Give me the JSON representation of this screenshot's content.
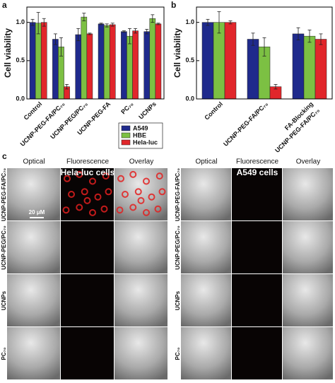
{
  "panels": {
    "a": "a",
    "b": "b",
    "c": "c"
  },
  "chart_data": [
    {
      "type": "bar",
      "ylabel": "Cell viability",
      "categories": [
        "Control",
        "UCNP-PEG-FA/PC₇₀",
        "UCNP-PEG/PC₇₀",
        "UCNP-PEG-FA",
        "PC₇₀",
        "UCNPs"
      ],
      "ylim": [
        0,
        1.2
      ],
      "yticks": [
        {
          "value": 0,
          "label": "0.0"
        },
        {
          "value": 0.5,
          "label": "0.5"
        },
        {
          "value": 1,
          "label": "1.0"
        }
      ],
      "legend": "lower right",
      "series": [
        {
          "name": "A549",
          "color": "#1f2a8c",
          "values": [
            1.0,
            0.78,
            0.84,
            0.98,
            0.88,
            0.88
          ],
          "errors": [
            0.04,
            0.07,
            0.08,
            0.01,
            0.01,
            0.03
          ]
        },
        {
          "name": "HBE",
          "color": "#7cc043",
          "values": [
            0.99,
            0.68,
            1.07,
            0.96,
            0.82,
            1.05
          ],
          "errors": [
            0.14,
            0.12,
            0.05,
            0.02,
            0.1,
            0.05
          ]
        },
        {
          "name": "Hela-luc",
          "color": "#e1262b",
          "values": [
            1.0,
            0.16,
            0.85,
            0.97,
            0.89,
            0.98
          ],
          "errors": [
            0.05,
            0.03,
            0.01,
            0.02,
            0.03,
            0.01
          ]
        }
      ]
    },
    {
      "type": "bar",
      "ylabel": "Cell viability",
      "categories": [
        "Control",
        "UCNP-PEG-FA/PC₇₀",
        [
          "FA-Blocking",
          "UCNP-PEG-FA/PC₇₀"
        ]
      ],
      "ylim": [
        0,
        1.2
      ],
      "yticks": [
        {
          "value": 0,
          "label": "0.0"
        },
        {
          "value": 0.5,
          "label": "0.5"
        },
        {
          "value": 1,
          "label": "1.0"
        }
      ],
      "series": [
        {
          "color": "#1f2a8c",
          "values": [
            1.0,
            0.78,
            0.85
          ],
          "errors": [
            0.04,
            0.08,
            0.08
          ]
        },
        {
          "color": "#7cc043",
          "values": [
            1.0,
            0.68,
            0.82
          ],
          "errors": [
            0.14,
            0.12,
            0.08
          ]
        },
        {
          "color": "#e1262b",
          "values": [
            1.0,
            0.16,
            0.78
          ],
          "errors": [
            0.02,
            0.03,
            0.07
          ]
        }
      ]
    }
  ],
  "image_grid": {
    "columns": [
      "Optical",
      "Fluorescence",
      "Overlay"
    ],
    "blocks": [
      {
        "title": "Hela-luc cells",
        "headers": [
          "Optical",
          "Fluorescence",
          "Overlay"
        ]
      },
      {
        "title": "A549 cells",
        "headers": [
          "Optical",
          "Fluorescence",
          "Overlay"
        ]
      }
    ],
    "rows": [
      "UCNP-PEG-FA/PC₇₀",
      "UCNP-PEG/PC₇₀",
      "UCNPs",
      "PC₇₀"
    ],
    "scale_bar": "20 μM"
  }
}
